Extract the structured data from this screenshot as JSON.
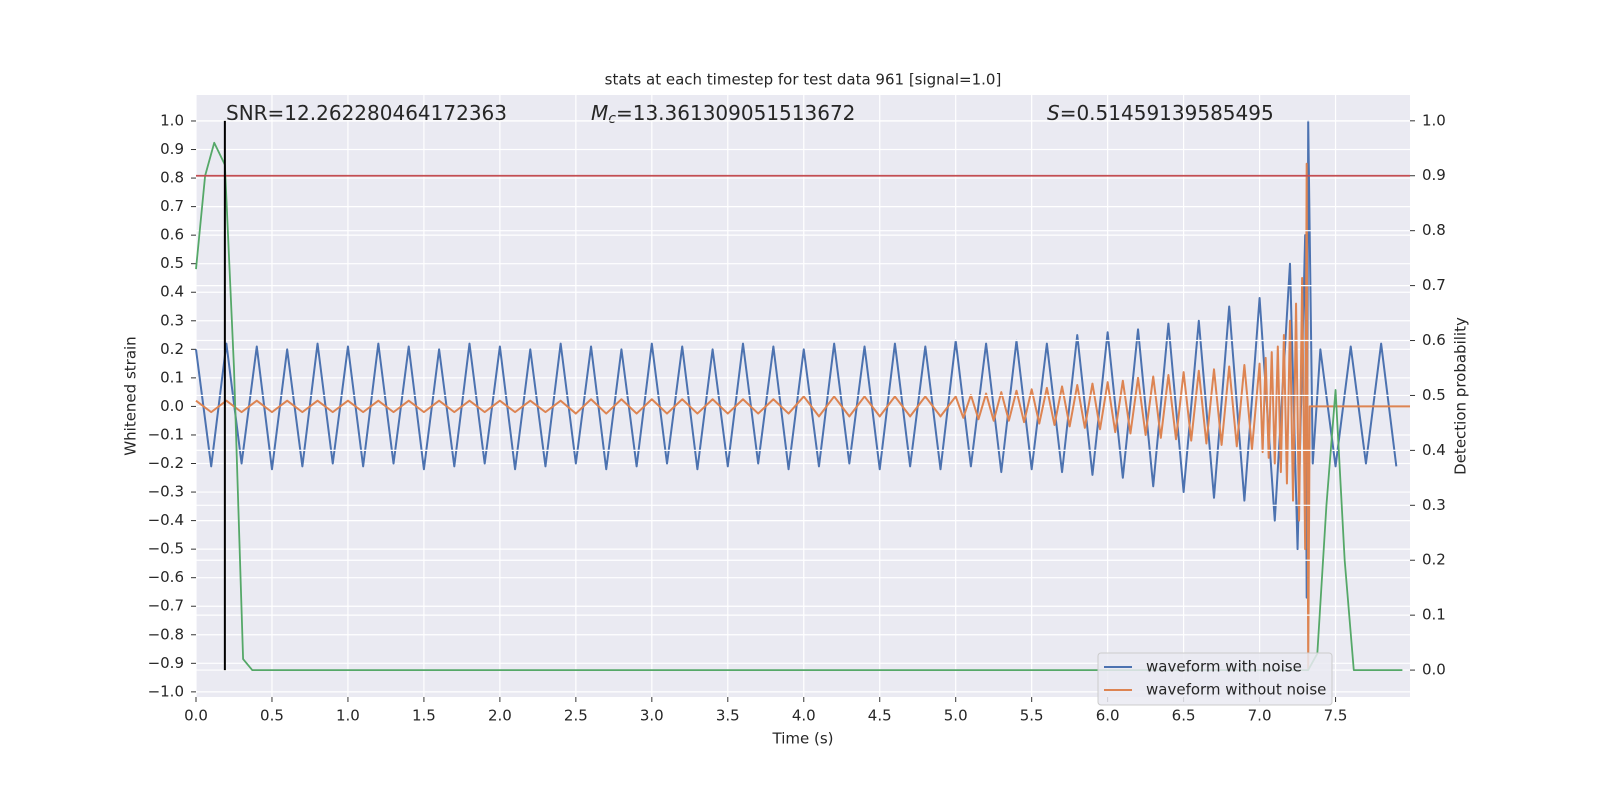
{
  "chart_data": {
    "type": "line",
    "title": "stats at each timestep for test data 961 [signal=1.0]",
    "xlabel": "Time (s)",
    "ylabel": "Whitened strain",
    "y2label": "Detection probability",
    "xlim": [
      0,
      7.99
    ],
    "ylim": [
      -1.018,
      1.091
    ],
    "y2lim": [
      -0.049,
      1.047
    ],
    "grid": true,
    "legend": "lower right",
    "xticks": [
      {
        "value": 0,
        "label": "0.0"
      },
      {
        "value": 0.5,
        "label": "0.5"
      },
      {
        "value": 1,
        "label": "1.0"
      },
      {
        "value": 1.5,
        "label": "1.5"
      },
      {
        "value": 2,
        "label": "2.0"
      },
      {
        "value": 2.5,
        "label": "2.5"
      },
      {
        "value": 3,
        "label": "3.0"
      },
      {
        "value": 3.5,
        "label": "3.5"
      },
      {
        "value": 4,
        "label": "4.0"
      },
      {
        "value": 4.5,
        "label": "4.5"
      },
      {
        "value": 5,
        "label": "5.0"
      },
      {
        "value": 5.5,
        "label": "5.5"
      },
      {
        "value": 6,
        "label": "6.0"
      },
      {
        "value": 6.5,
        "label": "6.5"
      },
      {
        "value": 7,
        "label": "7.0"
      },
      {
        "value": 7.5,
        "label": "7.5"
      }
    ],
    "yticks": [
      {
        "value": -1,
        "label": "−1.0"
      },
      {
        "value": -0.9,
        "label": "−0.9"
      },
      {
        "value": -0.8,
        "label": "−0.8"
      },
      {
        "value": -0.7,
        "label": "−0.7"
      },
      {
        "value": -0.6,
        "label": "−0.6"
      },
      {
        "value": -0.5,
        "label": "−0.5"
      },
      {
        "value": -0.4,
        "label": "−0.4"
      },
      {
        "value": -0.3,
        "label": "−0.3"
      },
      {
        "value": -0.2,
        "label": "−0.2"
      },
      {
        "value": -0.1,
        "label": "−0.1"
      },
      {
        "value": 0,
        "label": "0.0"
      },
      {
        "value": 0.1,
        "label": "0.1"
      },
      {
        "value": 0.2,
        "label": "0.2"
      },
      {
        "value": 0.3,
        "label": "0.3"
      },
      {
        "value": 0.4,
        "label": "0.4"
      },
      {
        "value": 0.5,
        "label": "0.5"
      },
      {
        "value": 0.6,
        "label": "0.6"
      },
      {
        "value": 0.7,
        "label": "0.7"
      },
      {
        "value": 0.8,
        "label": "0.8"
      },
      {
        "value": 0.9,
        "label": "0.9"
      },
      {
        "value": 1,
        "label": "1.0"
      }
    ],
    "y2ticks": [
      {
        "value": 0,
        "label": "0.0"
      },
      {
        "value": 0.1,
        "label": "0.1"
      },
      {
        "value": 0.2,
        "label": "0.2"
      },
      {
        "value": 0.3,
        "label": "0.3"
      },
      {
        "value": 0.4,
        "label": "0.4"
      },
      {
        "value": 0.5,
        "label": "0.5"
      },
      {
        "value": 0.6,
        "label": "0.6"
      },
      {
        "value": 0.7,
        "label": "0.7"
      },
      {
        "value": 0.8,
        "label": "0.8"
      },
      {
        "value": 0.9,
        "label": "0.9"
      },
      {
        "value": 1,
        "label": "1.0"
      }
    ],
    "annotations": [
      {
        "text": "SNR=12.262280464172363"
      },
      {
        "symbol": "M",
        "subscript": "c",
        "text": "=13.361309051513672"
      },
      {
        "symbol": "S",
        "text": "=0.51459139585495"
      }
    ],
    "series": [
      {
        "name": "waveform with noise",
        "color": "#4c72b0",
        "x": [
          0.0,
          0.1,
          0.2,
          0.3,
          0.4,
          0.5,
          0.6,
          0.7,
          0.8,
          0.9,
          1.0,
          1.1,
          1.2,
          1.3,
          1.4,
          1.5,
          1.6,
          1.7,
          1.8,
          1.9,
          2.0,
          2.1,
          2.2,
          2.3,
          2.4,
          2.5,
          2.6,
          2.7,
          2.8,
          2.9,
          3.0,
          3.1,
          3.2,
          3.3,
          3.4,
          3.5,
          3.6,
          3.7,
          3.8,
          3.9,
          4.0,
          4.1,
          4.2,
          4.3,
          4.4,
          4.5,
          4.6,
          4.7,
          4.8,
          4.9,
          5.0,
          5.1,
          5.2,
          5.3,
          5.4,
          5.5,
          5.6,
          5.7,
          5.8,
          5.9,
          6.0,
          6.1,
          6.2,
          6.3,
          6.4,
          6.5,
          6.6,
          6.7,
          6.8,
          6.9,
          7.0,
          7.1,
          7.2,
          7.25,
          7.3,
          7.31,
          7.32,
          7.35,
          7.4,
          7.5,
          7.6,
          7.7,
          7.8,
          7.9
        ],
        "values": [
          0.2,
          -0.21,
          0.22,
          -0.2,
          0.21,
          -0.22,
          0.2,
          -0.21,
          0.22,
          -0.2,
          0.21,
          -0.21,
          0.22,
          -0.2,
          0.21,
          -0.22,
          0.2,
          -0.21,
          0.22,
          -0.2,
          0.21,
          -0.22,
          0.2,
          -0.21,
          0.22,
          -0.2,
          0.21,
          -0.22,
          0.2,
          -0.21,
          0.22,
          -0.2,
          0.21,
          -0.22,
          0.2,
          -0.21,
          0.22,
          -0.2,
          0.21,
          -0.22,
          0.2,
          -0.21,
          0.22,
          -0.2,
          0.21,
          -0.22,
          0.22,
          -0.21,
          0.21,
          -0.22,
          0.23,
          -0.21,
          0.22,
          -0.23,
          0.23,
          -0.22,
          0.22,
          -0.23,
          0.25,
          -0.24,
          0.26,
          -0.25,
          0.27,
          -0.28,
          0.29,
          -0.3,
          0.3,
          -0.32,
          0.35,
          -0.33,
          0.38,
          -0.4,
          0.5,
          -0.5,
          0.6,
          -0.67,
          1.0,
          -0.2,
          0.2,
          -0.21,
          0.21,
          -0.2,
          0.22,
          -0.21
        ]
      },
      {
        "name": "waveform without noise",
        "color": "#dd8452",
        "x": [
          0.0,
          0.1,
          0.2,
          0.3,
          0.4,
          0.5,
          0.6,
          0.7,
          0.8,
          0.9,
          1.0,
          1.1,
          1.2,
          1.3,
          1.4,
          1.5,
          1.6,
          1.7,
          1.8,
          1.9,
          2.0,
          2.1,
          2.2,
          2.3,
          2.4,
          2.5,
          2.6,
          2.7,
          2.8,
          2.9,
          3.0,
          3.1,
          3.2,
          3.3,
          3.4,
          3.5,
          3.6,
          3.7,
          3.8,
          3.9,
          4.0,
          4.1,
          4.2,
          4.3,
          4.4,
          4.5,
          4.6,
          4.7,
          4.8,
          4.9,
          5.0,
          5.05,
          5.1,
          5.15,
          5.2,
          5.25,
          5.3,
          5.35,
          5.4,
          5.45,
          5.5,
          5.55,
          5.6,
          5.65,
          5.7,
          5.75,
          5.8,
          5.85,
          5.9,
          5.95,
          6.0,
          6.05,
          6.1,
          6.15,
          6.2,
          6.25,
          6.3,
          6.35,
          6.4,
          6.45,
          6.5,
          6.55,
          6.6,
          6.65,
          6.7,
          6.75,
          6.8,
          6.85,
          6.9,
          6.95,
          7.0,
          7.02,
          7.04,
          7.06,
          7.08,
          7.1,
          7.12,
          7.14,
          7.16,
          7.18,
          7.2,
          7.22,
          7.24,
          7.26,
          7.28,
          7.3,
          7.31,
          7.32,
          7.33,
          7.99
        ],
        "values": [
          0.02,
          -0.02,
          0.02,
          -0.02,
          0.02,
          -0.02,
          0.02,
          -0.02,
          0.02,
          -0.02,
          0.02,
          -0.02,
          0.02,
          -0.02,
          0.02,
          -0.02,
          0.02,
          -0.02,
          0.02,
          -0.02,
          0.02,
          -0.02,
          0.02,
          -0.02,
          0.02,
          -0.025,
          0.025,
          -0.025,
          0.025,
          -0.025,
          0.025,
          -0.025,
          0.025,
          -0.025,
          0.025,
          -0.025,
          0.025,
          -0.025,
          0.025,
          -0.025,
          0.035,
          -0.035,
          0.035,
          -0.035,
          0.035,
          -0.035,
          0.035,
          -0.035,
          0.035,
          -0.035,
          0.035,
          -0.04,
          0.04,
          -0.045,
          0.045,
          -0.05,
          0.05,
          -0.05,
          0.055,
          -0.055,
          0.06,
          -0.06,
          0.065,
          -0.065,
          0.07,
          -0.07,
          0.075,
          -0.075,
          0.08,
          -0.08,
          0.085,
          -0.09,
          0.09,
          -0.095,
          0.1,
          -0.1,
          0.105,
          -0.11,
          0.11,
          -0.115,
          0.12,
          -0.12,
          0.125,
          -0.13,
          0.13,
          -0.135,
          0.14,
          -0.14,
          0.145,
          -0.15,
          0.15,
          -0.16,
          0.17,
          -0.18,
          0.19,
          -0.2,
          0.21,
          -0.23,
          0.25,
          -0.27,
          0.3,
          -0.33,
          0.36,
          -0.4,
          0.45,
          -0.5,
          0.85,
          -0.92,
          0.0,
          0.0
        ]
      },
      {
        "color": "#55a868",
        "axis": "y2",
        "x": [
          0.0,
          0.06,
          0.12,
          0.19,
          0.25,
          0.31,
          0.37,
          1.0,
          7.25,
          7.32,
          7.38,
          7.44,
          7.5,
          7.56,
          7.62,
          7.94
        ],
        "values": [
          0.73,
          0.9,
          0.96,
          0.92,
          0.55,
          0.02,
          0.0,
          0.0,
          0.0,
          0.0,
          0.03,
          0.3,
          0.51,
          0.2,
          0.0,
          0.0
        ]
      }
    ],
    "lines": [
      {
        "type": "hline",
        "y": 0.9,
        "axis": "y2",
        "color": "#c44e52"
      },
      {
        "type": "vline",
        "x": 0.19,
        "y": [
          0,
          1
        ],
        "axis": "y2",
        "color": "#000000"
      }
    ]
  }
}
